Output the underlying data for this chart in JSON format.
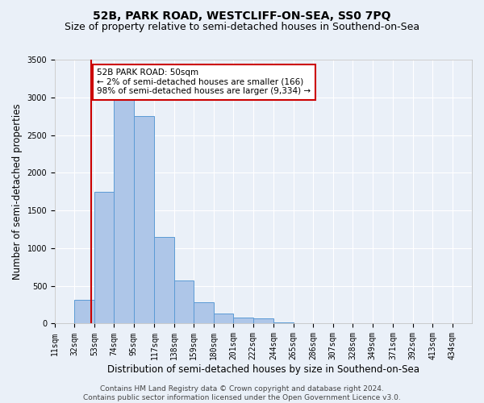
{
  "title": "52B, PARK ROAD, WESTCLIFF-ON-SEA, SS0 7PQ",
  "subtitle": "Size of property relative to semi-detached houses in Southend-on-Sea",
  "xlabel": "Distribution of semi-detached houses by size in Southend-on-Sea",
  "ylabel": "Number of semi-detached properties",
  "footnote1": "Contains HM Land Registry data © Crown copyright and database right 2024.",
  "footnote2": "Contains public sector information licensed under the Open Government Licence v3.0.",
  "annotation_title": "52B PARK ROAD: 50sqm",
  "annotation_line2": "← 2% of semi-detached houses are smaller (166)",
  "annotation_line3": "98% of semi-detached houses are larger (9,334) →",
  "bar_left_edges": [
    11,
    32,
    53,
    74,
    95,
    117,
    138,
    159,
    180,
    201,
    222,
    244,
    265,
    286,
    307,
    328,
    349,
    371,
    392,
    413
  ],
  "bar_widths": [
    21,
    21,
    21,
    21,
    22,
    21,
    21,
    21,
    21,
    21,
    22,
    21,
    21,
    21,
    21,
    21,
    22,
    21,
    21,
    21
  ],
  "bar_heights": [
    5,
    320,
    1750,
    3050,
    2750,
    1150,
    575,
    285,
    130,
    80,
    65,
    20,
    5,
    2,
    1,
    0,
    0,
    0,
    0,
    0
  ],
  "tick_labels": [
    "11sqm",
    "32sqm",
    "53sqm",
    "74sqm",
    "95sqm",
    "117sqm",
    "138sqm",
    "159sqm",
    "180sqm",
    "201sqm",
    "222sqm",
    "244sqm",
    "265sqm",
    "286sqm",
    "307sqm",
    "328sqm",
    "349sqm",
    "371sqm",
    "392sqm",
    "413sqm",
    "434sqm"
  ],
  "tick_positions": [
    11,
    32,
    53,
    74,
    95,
    117,
    138,
    159,
    180,
    201,
    222,
    244,
    265,
    286,
    307,
    328,
    349,
    371,
    392,
    413,
    434
  ],
  "bar_color": "#aec6e8",
  "bar_edge_color": "#5b9bd5",
  "highlight_x": 50,
  "highlight_color": "#cc0000",
  "ylim": [
    0,
    3500
  ],
  "xlim": [
    11,
    455
  ],
  "bg_color": "#eaf0f8",
  "plot_bg_color": "#eaf0f8",
  "grid_color": "#ffffff",
  "title_fontsize": 10,
  "subtitle_fontsize": 9,
  "axis_label_fontsize": 8.5,
  "tick_fontsize": 7,
  "footnote_fontsize": 6.5,
  "annotation_fontsize": 7.5
}
